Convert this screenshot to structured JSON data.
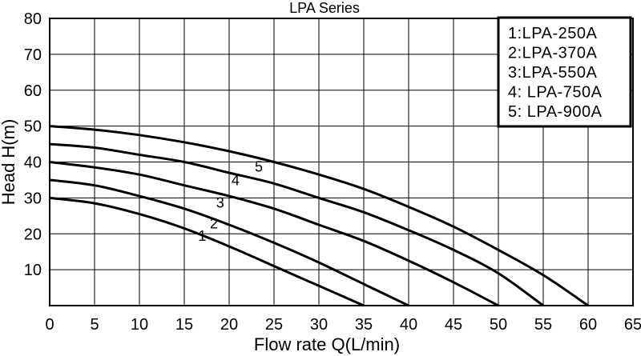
{
  "chart_data": {
    "type": "line",
    "title": "LPA Series",
    "xlabel": "Flow rate Q(L/min)",
    "ylabel": "Head H(m)",
    "xlim": [
      0,
      65
    ],
    "ylim": [
      0,
      80
    ],
    "xticks": [
      0,
      5,
      10,
      15,
      20,
      25,
      30,
      35,
      40,
      45,
      50,
      55,
      60,
      65
    ],
    "yticks": [
      10,
      20,
      30,
      40,
      50,
      60,
      70,
      80
    ],
    "grid": true,
    "legend_position": "top-right",
    "legend": [
      "1:LPA-250A",
      "2:LPA-370A",
      "3:LPA-550A",
      "4: LPA-750A",
      "5: LPA-900A"
    ],
    "series": [
      {
        "name": "1",
        "x": [
          0,
          5,
          10,
          15,
          20,
          25,
          30,
          35
        ],
        "y": [
          30,
          28.5,
          25.5,
          21.5,
          16.5,
          11,
          5.5,
          0
        ]
      },
      {
        "name": "2",
        "x": [
          0,
          5,
          10,
          15,
          20,
          25,
          30,
          35,
          40
        ],
        "y": [
          35,
          33.5,
          30.5,
          27,
          22.5,
          17.5,
          12,
          6,
          0
        ]
      },
      {
        "name": "3",
        "x": [
          0,
          5,
          10,
          15,
          20,
          25,
          30,
          35,
          40,
          45,
          50
        ],
        "y": [
          40,
          38.5,
          36.5,
          33.5,
          30.5,
          27,
          22.5,
          18,
          12.5,
          6.5,
          0
        ]
      },
      {
        "name": "4",
        "x": [
          0,
          5,
          10,
          15,
          20,
          25,
          30,
          35,
          40,
          45,
          50,
          55
        ],
        "y": [
          45,
          44,
          42,
          40,
          37,
          34,
          30,
          26,
          21,
          15.5,
          9,
          0
        ]
      },
      {
        "name": "5",
        "x": [
          0,
          5,
          10,
          15,
          20,
          25,
          30,
          35,
          40,
          45,
          50,
          55,
          60
        ],
        "y": [
          50,
          49,
          47.5,
          45.5,
          43,
          40,
          36.5,
          32.5,
          27.5,
          22,
          15.5,
          8.5,
          0
        ]
      }
    ],
    "curve_labels": [
      {
        "text": "1",
        "x": 17,
        "y": 18
      },
      {
        "text": "2",
        "x": 18.3,
        "y": 21.5
      },
      {
        "text": "3",
        "x": 19,
        "y": 27.3
      },
      {
        "text": "4",
        "x": 20.7,
        "y": 33.5
      },
      {
        "text": "5",
        "x": 23.3,
        "y": 37.3
      }
    ]
  }
}
